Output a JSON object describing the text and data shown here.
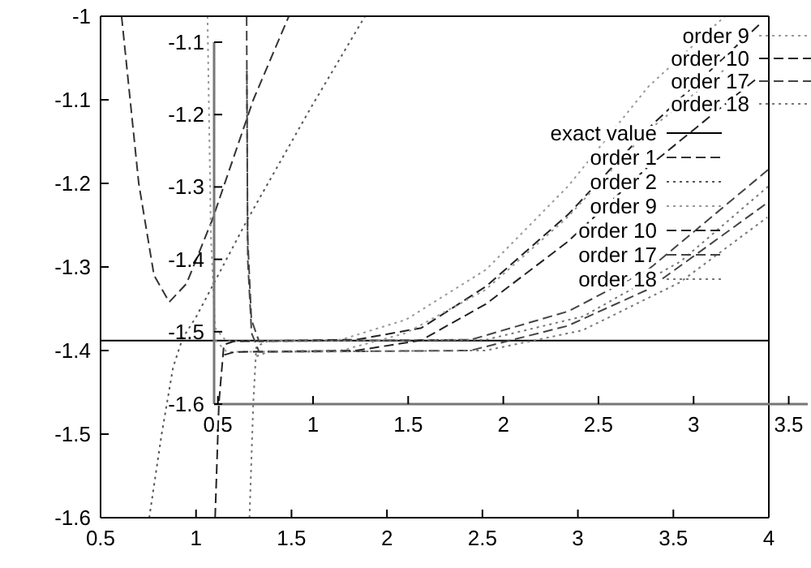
{
  "chart_data": [
    {
      "type": "line",
      "xlim": [
        0.5,
        4
      ],
      "ylim": [
        -1.6,
        -1
      ],
      "xticks": [
        0.5,
        1,
        1.5,
        2,
        2.5,
        3,
        3.5,
        4
      ],
      "yticks": [
        -1.6,
        -1.5,
        -1.4,
        -1.3,
        -1.2,
        -1.1,
        -1
      ],
      "legend": "top right",
      "grid": false,
      "series": [
        {
          "name": "exact value",
          "color": "#000000",
          "line_style": "solid",
          "x": [
            0.5,
            4
          ],
          "values": [
            -1.388,
            -1.388
          ]
        },
        {
          "name": "order 1",
          "color": "#333333",
          "line_style": "dashed",
          "x": [
            0.61,
            0.7,
            0.78,
            0.86,
            0.95,
            1.086,
            1.3,
            1.486
          ],
          "values": [
            -1,
            -1.2,
            -1.31,
            -1.342,
            -1.32,
            -1.243,
            -1.1,
            -1
          ]
        },
        {
          "name": "order 2",
          "color": "#555555",
          "line_style": "dotted",
          "x": [
            0.755,
            0.82,
            0.88,
            0.93,
            1.0,
            1.27,
            1.6,
            1.885
          ],
          "values": [
            -1.6,
            -1.5,
            -1.42,
            -1.385,
            -1.36,
            -1.243,
            -1.11,
            -1
          ]
        },
        {
          "name": "order 9",
          "color": "#999999",
          "line_style": "dotted",
          "x": [
            1.06,
            1.078,
            1.1,
            1.16,
            1.76,
            2.1,
            2.52,
            2.95,
            3.37,
            3.77
          ],
          "values": [
            -1,
            -1.263,
            -1.373,
            -1.389,
            -1.387,
            -1.363,
            -1.303,
            -1.203,
            -1.084,
            -1
          ]
        },
        {
          "name": "order 10",
          "color": "#222222",
          "line_style": "dashed",
          "x": [
            1.1,
            1.12,
            1.146,
            1.2,
            1.84,
            2.18,
            2.52,
            2.95,
            3.37,
            3.95
          ],
          "values": [
            -1.6,
            -1.462,
            -1.393,
            -1.389,
            -1.387,
            -1.373,
            -1.323,
            -1.237,
            -1.134,
            -1.01
          ]
        },
        {
          "name": "order 17",
          "color": "#444444",
          "line_style": "dashed",
          "x": [
            1.265,
            1.27,
            1.29,
            1.33,
            2.44,
            2.95,
            3.37,
            4
          ],
          "values": [
            -1,
            -1.263,
            -1.363,
            -1.389,
            -1.387,
            -1.353,
            -1.303,
            -1.183
          ]
        },
        {
          "name": "order 18",
          "color": "#777777",
          "line_style": "dotted",
          "x": [
            1.28,
            1.3,
            1.316,
            1.375,
            2.52,
            3.03,
            3.54,
            4
          ],
          "values": [
            -1.6,
            -1.462,
            -1.395,
            -1.389,
            -1.387,
            -1.359,
            -1.293,
            -1.203
          ]
        }
      ]
    },
    {
      "type": "line",
      "xlim": [
        0.48,
        3.6
      ],
      "ylim": [
        -1.6,
        -1.1
      ],
      "xticks": [
        0.5,
        1,
        1.5,
        2,
        2.5,
        3,
        3.5
      ],
      "yticks": [
        -1.6,
        -1.5,
        -1.4,
        -1.3,
        -1.2,
        -1.1
      ],
      "legend": "top right",
      "grid": false,
      "series": [
        {
          "name": "order 9",
          "color": "#999999",
          "line_style": "dotted",
          "x": [
            0.487,
            0.547,
            1.147,
            1.487,
            1.907,
            2.337,
            2.757,
            3.157
          ],
          "values": [
            -1.512,
            -1.528,
            -1.526,
            -1.502,
            -1.442,
            -1.342,
            -1.223,
            -1.139
          ]
        },
        {
          "name": "order 10",
          "color": "#222222",
          "line_style": "dashed",
          "x": [
            0.533,
            0.587,
            1.227,
            1.567,
            1.907,
            2.337,
            2.757,
            3.337
          ],
          "values": [
            -1.532,
            -1.528,
            -1.526,
            -1.512,
            -1.462,
            -1.376,
            -1.273,
            -1.149
          ]
        },
        {
          "name": "order 17",
          "color": "#444444",
          "line_style": "dashed",
          "x": [
            0.652,
            0.657,
            0.677,
            0.717,
            1.827,
            2.337,
            2.757,
            3.387
          ],
          "values": [
            -1.139,
            -1.402,
            -1.502,
            -1.528,
            -1.526,
            -1.492,
            -1.442,
            -1.322
          ]
        },
        {
          "name": "order 18",
          "color": "#777777",
          "line_style": "dotted",
          "x": [
            0.703,
            0.762,
            1.907,
            2.417,
            2.927,
            3.387
          ],
          "values": [
            -1.534,
            -1.528,
            -1.526,
            -1.498,
            -1.432,
            -1.342
          ]
        }
      ]
    }
  ]
}
